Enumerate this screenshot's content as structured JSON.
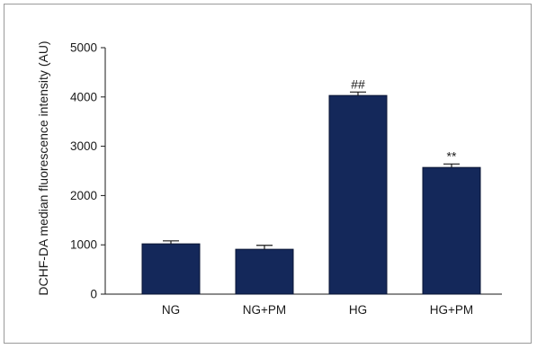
{
  "chart_data": {
    "type": "bar",
    "categories": [
      "NG",
      "NG+PM",
      "HG",
      "HG+PM"
    ],
    "values": [
      1020,
      910,
      4030,
      2570
    ],
    "errors": [
      60,
      80,
      70,
      70
    ],
    "annotations": [
      "",
      "",
      "##",
      "**"
    ],
    "ylabel": "DCHF-DA median fluorescence intensity (AU)",
    "xlabel": "",
    "ylim": [
      0,
      5000
    ],
    "yticks": [
      0,
      1000,
      2000,
      3000,
      4000,
      5000
    ],
    "bar_color": "#14285a",
    "grid": false,
    "legend": "none"
  }
}
